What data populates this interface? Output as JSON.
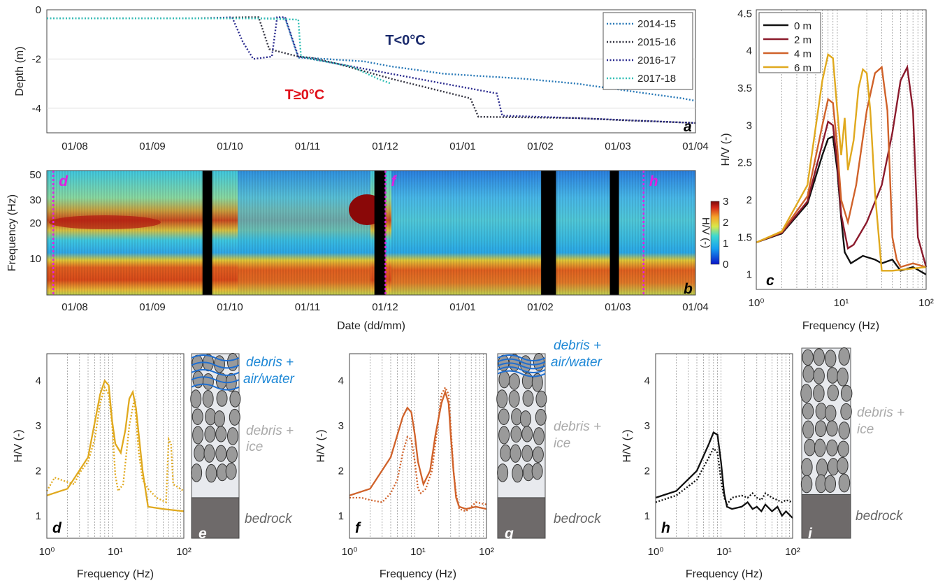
{
  "colors": {
    "y2014": "#2a7ab8",
    "y2015": "#333340",
    "y2016": "#2b2b8f",
    "y2017": "#32bfb5",
    "m0": "#111111",
    "m2": "#8b1a2c",
    "m4": "#d0622a",
    "m6": "#e0a91e",
    "frozen_label": "#1a2a6c",
    "thawed_label": "#e0101a",
    "water_label": "#1e88d6",
    "ice_label": "#aaaaaa",
    "bedrock_label": "#666666",
    "marker": "#e020e0"
  },
  "labels": {
    "frozen": "T<0°C",
    "thawed": "T≥0°C",
    "debris_water": [
      "debris +",
      "air/water"
    ],
    "debris_ice": [
      "debris +",
      "ice"
    ],
    "bedrock": "bedrock",
    "colorbar_label": "H/V (-)"
  },
  "chart_data": [
    {
      "id": "a",
      "type": "line",
      "panel_letter": "a",
      "ylabel": "Depth (m)",
      "xlabel": "",
      "x_ticks": [
        "01/08",
        "01/09",
        "01/10",
        "01/11",
        "01/12",
        "01/01",
        "01/02",
        "01/03",
        "01/04"
      ],
      "y_ticks": [
        "0",
        "-2",
        "-4"
      ],
      "ylim": [
        -5,
        0
      ],
      "grid": "horizontal",
      "legend_position": "top-right",
      "series": [
        {
          "name": "2014-15",
          "color_key": "y2014",
          "x": [
            0,
            60,
            90,
            95,
            98,
            120,
            130,
            150,
            180,
            200,
            220,
            240,
            245
          ],
          "y": [
            -0.35,
            -0.35,
            -0.35,
            -1.95,
            -1.95,
            -2.1,
            -2.3,
            -2.6,
            -2.8,
            -3.0,
            -3.3,
            -3.6,
            -3.7
          ]
        },
        {
          "name": "2015-16",
          "color_key": "y2015",
          "x": [
            0,
            55,
            75,
            80,
            84,
            95,
            100,
            110,
            130,
            160,
            163,
            200,
            220,
            245
          ],
          "y": [
            -0.35,
            -0.35,
            -0.3,
            -0.3,
            -1.6,
            -1.9,
            -1.95,
            -2.2,
            -2.8,
            -3.6,
            -4.35,
            -4.4,
            -4.5,
            -4.6
          ]
        },
        {
          "name": "2016-17",
          "color_key": "y2016",
          "x": [
            0,
            60,
            70,
            74,
            78,
            85,
            87,
            90,
            95,
            110,
            140,
            170,
            172,
            200,
            245
          ],
          "y": [
            -0.35,
            -0.35,
            -0.3,
            -1.3,
            -2.0,
            -1.9,
            -0.3,
            -0.3,
            -1.9,
            -2.2,
            -2.8,
            -3.4,
            -4.3,
            -4.4,
            -4.6
          ]
        },
        {
          "name": "2017-18",
          "color_key": "y2017",
          "x": [
            0,
            80,
            95,
            96,
            100,
            115,
            125,
            130
          ],
          "y": [
            -0.35,
            -0.35,
            -0.4,
            -1.9,
            -2.0,
            -2.3,
            -2.8,
            -3.0
          ]
        }
      ]
    },
    {
      "id": "b",
      "type": "heatmap",
      "panel_letter": "b",
      "ylabel": "Frequency (Hz)",
      "xlabel": "Date (dd/mm)",
      "x_ticks": [
        "01/08",
        "01/09",
        "01/10",
        "01/11",
        "01/12",
        "01/01",
        "01/02",
        "01/03",
        "01/04"
      ],
      "y_ticks": [
        "10",
        "20",
        "30",
        "50"
      ],
      "colorbar_range": [
        0,
        3
      ],
      "colorbar_ticks": [
        "0",
        "1",
        "2",
        "3"
      ],
      "gaps": [
        [
          0.24,
          0.255
        ],
        [
          0.505,
          0.522
        ],
        [
          0.762,
          0.785
        ],
        [
          0.868,
          0.882
        ]
      ],
      "markers": [
        {
          "date": "01/08",
          "label": "d"
        },
        {
          "date": "01/12",
          "label": "f"
        },
        {
          "date": "01/04",
          "label": "h"
        }
      ]
    },
    {
      "id": "c",
      "type": "line",
      "panel_letter": "c",
      "xlabel": "Frequency (Hz)",
      "ylabel": "H/V (-)",
      "xscale": "log",
      "x_ticks": [
        "10⁰",
        "10¹",
        "10²"
      ],
      "y_ticks": [
        "1",
        "1.5",
        "2",
        "2.5",
        "3",
        "3.5",
        "4",
        "4.5"
      ],
      "xlim": [
        1,
        100
      ],
      "ylim": [
        0.8,
        4.55
      ],
      "legend_position": "top-left",
      "series": [
        {
          "name": "0 m",
          "color_key": "m0",
          "x": [
            1,
            2,
            4,
            6,
            7,
            8,
            9,
            10,
            11,
            13,
            18,
            25,
            30,
            40,
            50,
            70,
            100
          ],
          "y": [
            1.43,
            1.55,
            1.95,
            2.6,
            2.82,
            2.85,
            2.4,
            1.75,
            1.3,
            1.15,
            1.25,
            1.2,
            1.15,
            1.2,
            1.05,
            1.1,
            1.0
          ]
        },
        {
          "name": "2 m",
          "color_key": "m2",
          "x": [
            1,
            2,
            4,
            6,
            7,
            8,
            9,
            10,
            12,
            14,
            20,
            30,
            40,
            50,
            60,
            70,
            80,
            100
          ],
          "y": [
            1.43,
            1.56,
            1.98,
            2.75,
            3.05,
            3.0,
            2.5,
            1.8,
            1.35,
            1.4,
            1.7,
            2.2,
            2.9,
            3.6,
            3.78,
            3.2,
            1.5,
            1.1
          ]
        },
        {
          "name": "4 m",
          "color_key": "m4",
          "x": [
            1,
            2,
            4,
            6,
            7,
            8,
            9,
            10,
            12,
            15,
            20,
            25,
            30,
            35,
            40,
            45,
            50,
            70,
            100
          ],
          "y": [
            1.43,
            1.57,
            2.05,
            3.0,
            3.35,
            3.3,
            2.7,
            2.0,
            1.7,
            2.2,
            3.2,
            3.7,
            3.78,
            3.2,
            1.5,
            1.2,
            1.1,
            1.15,
            1.1
          ]
        },
        {
          "name": "6 m",
          "color_key": "m6",
          "x": [
            1,
            2,
            4,
            6,
            7,
            8,
            9,
            10,
            11,
            12,
            14,
            16,
            18,
            20,
            22,
            25,
            30,
            40,
            100
          ],
          "y": [
            1.43,
            1.58,
            2.2,
            3.6,
            3.95,
            3.9,
            3.2,
            2.6,
            3.1,
            2.4,
            2.8,
            3.5,
            3.75,
            3.7,
            3.2,
            2.1,
            1.05,
            1.05,
            1.1
          ]
        }
      ]
    },
    {
      "id": "d",
      "type": "line",
      "panel_letter": "d",
      "color_key": "m6",
      "xlabel": "Frequency (Hz)",
      "ylabel": "H/V (-)",
      "xscale": "log",
      "x_ticks": [
        "10⁰",
        "10¹",
        "10²"
      ],
      "y_ticks": [
        "1",
        "2",
        "3",
        "4"
      ],
      "xlim": [
        1,
        100
      ],
      "ylim": [
        0.5,
        4.6
      ],
      "series": [
        {
          "style": "solid",
          "x": [
            1,
            2,
            4,
            6,
            7,
            8,
            9,
            10,
            12,
            14,
            16,
            18,
            20,
            25,
            30,
            50,
            100
          ],
          "y": [
            1.45,
            1.6,
            2.3,
            3.7,
            4.0,
            3.9,
            3.1,
            2.6,
            2.4,
            2.9,
            3.6,
            3.75,
            3.4,
            2.0,
            1.2,
            1.15,
            1.1
          ]
        },
        {
          "style": "dotted",
          "x": [
            1,
            1.3,
            1.6,
            2,
            2.5,
            3,
            4,
            5,
            6,
            7,
            8,
            9,
            10,
            11,
            13,
            16,
            19,
            22,
            25,
            30,
            40,
            55,
            60,
            65,
            70,
            100
          ],
          "y": [
            1.55,
            1.85,
            1.8,
            1.75,
            1.7,
            1.95,
            2.2,
            2.7,
            3.5,
            3.85,
            3.7,
            3.0,
            1.9,
            1.55,
            1.7,
            3.0,
            3.6,
            2.4,
            1.8,
            1.6,
            1.4,
            1.3,
            2.7,
            2.6,
            1.7,
            1.55
          ]
        }
      ]
    },
    {
      "id": "f",
      "type": "line",
      "panel_letter": "f",
      "color_key": "m4",
      "xlabel": "Frequency (Hz)",
      "ylabel": "H/V (-)",
      "xscale": "log",
      "x_ticks": [
        "10⁰",
        "10¹",
        "10²"
      ],
      "y_ticks": [
        "1",
        "2",
        "3",
        "4"
      ],
      "xlim": [
        1,
        100
      ],
      "ylim": [
        0.5,
        4.6
      ],
      "series": [
        {
          "style": "solid",
          "x": [
            1,
            2,
            4,
            6,
            7,
            8,
            9,
            10,
            12,
            15,
            18,
            22,
            25,
            28,
            30,
            33,
            36,
            40,
            50,
            70,
            100
          ],
          "y": [
            1.45,
            1.6,
            2.3,
            3.2,
            3.4,
            3.3,
            2.8,
            2.2,
            1.7,
            2.0,
            2.8,
            3.5,
            3.75,
            3.5,
            2.8,
            2.0,
            1.4,
            1.2,
            1.15,
            1.2,
            1.15
          ]
        },
        {
          "style": "dotted",
          "x": [
            1,
            1.5,
            2,
            3,
            4,
            5,
            6,
            7,
            8,
            9,
            10,
            11,
            13,
            16,
            19,
            22,
            25,
            28,
            30,
            33,
            36,
            40,
            50,
            60,
            70,
            100
          ],
          "y": [
            1.4,
            1.4,
            1.35,
            1.3,
            1.5,
            1.8,
            2.4,
            2.75,
            2.7,
            2.2,
            1.6,
            1.5,
            1.6,
            2.0,
            2.9,
            3.7,
            3.85,
            3.7,
            3.0,
            2.0,
            1.5,
            1.15,
            1.1,
            1.2,
            1.3,
            1.25
          ]
        }
      ]
    },
    {
      "id": "h",
      "type": "line",
      "panel_letter": "h",
      "color_key": "m0",
      "xlabel": "Frequency (Hz)",
      "ylabel": "H/V (-)",
      "xscale": "log",
      "x_ticks": [
        "10⁰",
        "10¹",
        "10²"
      ],
      "y_ticks": [
        "1",
        "2",
        "3",
        "4"
      ],
      "xlim": [
        1,
        100
      ],
      "ylim": [
        0.5,
        4.6
      ],
      "series": [
        {
          "style": "solid",
          "x": [
            1,
            2,
            4,
            6,
            7,
            8,
            9,
            10,
            11,
            13,
            18,
            22,
            26,
            30,
            35,
            40,
            50,
            60,
            70,
            80,
            100
          ],
          "y": [
            1.4,
            1.55,
            2.0,
            2.6,
            2.85,
            2.8,
            2.2,
            1.5,
            1.2,
            1.15,
            1.2,
            1.3,
            1.15,
            1.2,
            1.1,
            1.25,
            1.1,
            1.2,
            1.0,
            1.1,
            0.95
          ]
        },
        {
          "style": "dotted",
          "x": [
            1,
            2,
            4,
            6,
            7,
            8,
            9,
            10,
            11,
            13,
            18,
            22,
            26,
            30,
            35,
            40,
            50,
            60,
            70,
            80,
            100
          ],
          "y": [
            1.3,
            1.45,
            1.8,
            2.3,
            2.5,
            2.4,
            1.8,
            1.4,
            1.25,
            1.4,
            1.45,
            1.4,
            1.5,
            1.4,
            1.35,
            1.5,
            1.4,
            1.35,
            1.3,
            1.35,
            1.3
          ]
        }
      ]
    }
  ]
}
